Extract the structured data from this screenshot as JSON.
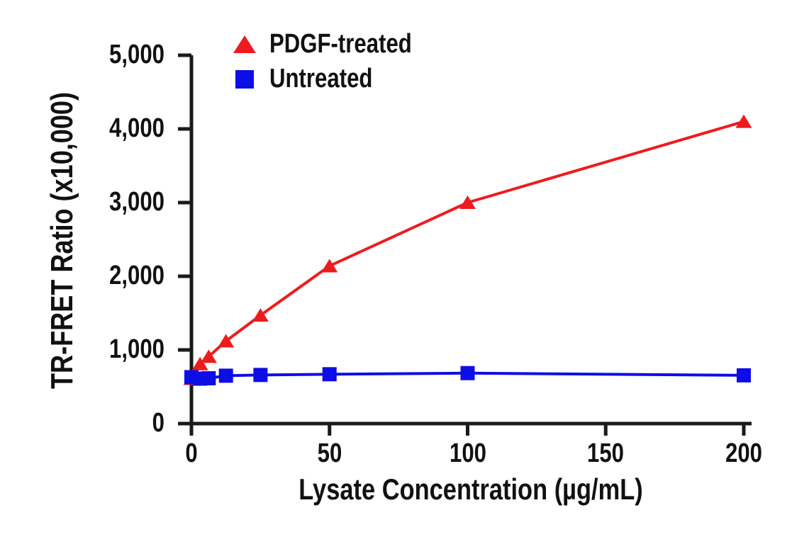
{
  "figure": {
    "background": "#ffffff",
    "axis_color": "#1a1a1a"
  },
  "chart_data": {
    "type": "line",
    "title": "",
    "xlabel": "Lysate Concentration (µg/mL)",
    "ylabel": "TR-FRET Ratio (x10,000)",
    "xlim": [
      0,
      200
    ],
    "ylim": [
      0,
      5000
    ],
    "xticks": [
      0,
      50,
      100,
      150,
      200
    ],
    "yticks": [
      0,
      1000,
      2000,
      3000,
      4000,
      5000
    ],
    "grid": false,
    "legend_position": "top-left-inside",
    "x": [
      0,
      3.125,
      6.25,
      12.5,
      25,
      50,
      100,
      200
    ],
    "series": [
      {
        "name": "PDGF-treated",
        "marker": "triangle",
        "color": "#ee1b1e",
        "values": [
          610,
          810,
          910,
          1120,
          1470,
          2140,
          3000,
          4100
        ]
      },
      {
        "name": "Untreated",
        "marker": "square",
        "color": "#0d0de6",
        "values": [
          630,
          610,
          615,
          650,
          660,
          670,
          685,
          655
        ]
      }
    ]
  }
}
